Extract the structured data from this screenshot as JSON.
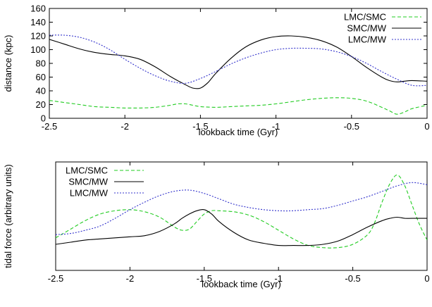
{
  "chart_data": [
    {
      "type": "line",
      "xlabel": "lookback time (Gyr)",
      "ylabel": "distance (kpc)",
      "xlim": [
        -2.5,
        0
      ],
      "ylim": [
        0,
        160
      ],
      "xticks": [
        "-2.5",
        "-2",
        "-1.5",
        "-1",
        "-0.5",
        "0"
      ],
      "yticks": [
        "0",
        "20",
        "40",
        "60",
        "80",
        "100",
        "120",
        "140",
        "160"
      ],
      "legend_position": "top-right",
      "series": [
        {
          "name": "LMC/SMC",
          "color": "#22cc22",
          "dash": "dashed",
          "x": [
            -2.5,
            -2.4,
            -2.3,
            -2.2,
            -2.1,
            -2.0,
            -1.9,
            -1.8,
            -1.7,
            -1.65,
            -1.6,
            -1.55,
            -1.5,
            -1.4,
            -1.3,
            -1.2,
            -1.1,
            -1.0,
            -0.9,
            -0.8,
            -0.7,
            -0.6,
            -0.5,
            -0.4,
            -0.3,
            -0.25,
            -0.2,
            -0.15,
            -0.1,
            0.0
          ],
          "values": [
            26,
            23,
            20,
            17,
            16,
            15,
            15,
            16,
            19,
            21,
            21,
            19,
            17,
            16,
            17,
            18,
            19,
            21,
            24,
            27,
            29,
            30,
            29,
            25,
            16,
            11,
            6,
            9,
            14,
            19
          ]
        },
        {
          "name": "SMC/MW",
          "color": "#000000",
          "dash": "solid",
          "x": [
            -2.5,
            -2.4,
            -2.3,
            -2.2,
            -2.1,
            -2.0,
            -1.9,
            -1.8,
            -1.7,
            -1.6,
            -1.55,
            -1.5,
            -1.45,
            -1.4,
            -1.3,
            -1.2,
            -1.1,
            -1.0,
            -0.9,
            -0.8,
            -0.7,
            -0.6,
            -0.5,
            -0.4,
            -0.3,
            -0.25,
            -0.2,
            -0.15,
            -0.1,
            0.0
          ],
          "values": [
            115,
            108,
            101,
            96,
            93,
            91,
            86,
            75,
            61,
            49,
            44,
            44,
            52,
            65,
            87,
            104,
            114,
            119,
            120,
            118,
            113,
            104,
            90,
            74,
            60,
            55,
            53,
            54,
            55,
            54
          ]
        },
        {
          "name": "LMC/MW",
          "color": "#3333cc",
          "dash": "dotted",
          "x": [
            -2.5,
            -2.4,
            -2.3,
            -2.2,
            -2.1,
            -2.0,
            -1.9,
            -1.8,
            -1.7,
            -1.6,
            -1.5,
            -1.4,
            -1.3,
            -1.2,
            -1.1,
            -1.0,
            -0.9,
            -0.8,
            -0.7,
            -0.6,
            -0.5,
            -0.4,
            -0.3,
            -0.2,
            -0.1,
            0.0
          ],
          "values": [
            121,
            121,
            118,
            111,
            100,
            86,
            73,
            62,
            54,
            51,
            58,
            68,
            79,
            88,
            95,
            100,
            102,
            102,
            101,
            97,
            90,
            80,
            68,
            57,
            48,
            48
          ]
        }
      ]
    },
    {
      "type": "line",
      "xlabel": "lookback time (Gyr)",
      "ylabel": "tidal force (arbitrary units)",
      "xlim": [
        -2.5,
        0
      ],
      "ylim": [
        0,
        100
      ],
      "xticks": [
        "-2.5",
        "-2",
        "-1.5",
        "-1",
        "-0.5",
        "0"
      ],
      "yticks": [],
      "legend_position": "top-left",
      "series": [
        {
          "name": "LMC/SMC",
          "color": "#22cc22",
          "dash": "dashed",
          "x": [
            -2.5,
            -2.4,
            -2.3,
            -2.2,
            -2.1,
            -2.0,
            -1.9,
            -1.8,
            -1.7,
            -1.65,
            -1.6,
            -1.55,
            -1.5,
            -1.45,
            -1.4,
            -1.3,
            -1.2,
            -1.1,
            -1.0,
            -0.9,
            -0.8,
            -0.7,
            -0.6,
            -0.5,
            -0.4,
            -0.35,
            -0.3,
            -0.25,
            -0.2,
            -0.15,
            -0.1,
            -0.05,
            0.0
          ],
          "values": [
            30,
            38,
            46,
            52,
            55,
            56,
            54,
            49,
            40,
            37,
            38,
            45,
            52,
            55,
            55,
            54,
            51,
            45,
            37,
            29,
            23,
            21,
            21,
            24,
            33,
            45,
            64,
            80,
            88,
            78,
            60,
            42,
            28
          ]
        },
        {
          "name": "SMC/MW",
          "color": "#000000",
          "dash": "solid",
          "x": [
            -2.5,
            -2.4,
            -2.3,
            -2.2,
            -2.1,
            -2.0,
            -1.9,
            -1.8,
            -1.7,
            -1.65,
            -1.6,
            -1.55,
            -1.5,
            -1.45,
            -1.4,
            -1.3,
            -1.2,
            -1.1,
            -1.0,
            -0.9,
            -0.8,
            -0.7,
            -0.6,
            -0.5,
            -0.4,
            -0.3,
            -0.25,
            -0.2,
            -0.15,
            -0.1,
            0.0
          ],
          "values": [
            24,
            26,
            28,
            29,
            30,
            31,
            32,
            36,
            43,
            48,
            52,
            55,
            56,
            52,
            45,
            35,
            28,
            25,
            23,
            23,
            23,
            24,
            27,
            33,
            40,
            46,
            48,
            49,
            48,
            48,
            48
          ]
        },
        {
          "name": "LMC/MW",
          "color": "#3333cc",
          "dash": "dotted",
          "x": [
            -2.5,
            -2.4,
            -2.3,
            -2.2,
            -2.1,
            -2.0,
            -1.9,
            -1.8,
            -1.7,
            -1.6,
            -1.5,
            -1.4,
            -1.3,
            -1.2,
            -1.1,
            -1.0,
            -0.9,
            -0.8,
            -0.7,
            -0.6,
            -0.5,
            -0.4,
            -0.3,
            -0.2,
            -0.1,
            0.0
          ],
          "values": [
            33,
            34,
            37,
            41,
            48,
            56,
            63,
            69,
            73,
            74,
            71,
            66,
            61,
            58,
            56,
            55,
            55,
            56,
            57,
            60,
            64,
            68,
            73,
            78,
            81,
            79
          ]
        }
      ]
    }
  ]
}
